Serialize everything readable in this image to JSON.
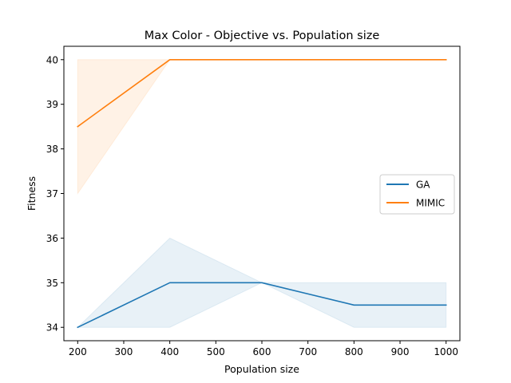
{
  "chart_data": {
    "type": "line",
    "title": "Max Color - Objective vs. Population size",
    "xlabel": "Population size",
    "ylabel": "Fitness",
    "xlim": [
      170,
      1030
    ],
    "ylim": [
      33.7,
      40.3
    ],
    "xticks": [
      200,
      300,
      400,
      500,
      600,
      700,
      800,
      900,
      1000
    ],
    "yticks": [
      34,
      35,
      36,
      37,
      38,
      39,
      40
    ],
    "grid": false,
    "legend_position": "center-right",
    "series": [
      {
        "name": "GA",
        "color": "#1f77b4",
        "x": [
          200,
          400,
          600,
          800,
          1000
        ],
        "y": [
          34.0,
          35.0,
          35.0,
          34.5,
          34.5
        ],
        "band_low": [
          34.0,
          34.0,
          35.0,
          34.0,
          34.0
        ],
        "band_high": [
          34.0,
          36.0,
          35.0,
          35.0,
          35.0
        ]
      },
      {
        "name": "MIMIC",
        "color": "#ff7f0e",
        "x": [
          200,
          400,
          600,
          800,
          1000
        ],
        "y": [
          38.5,
          40.0,
          40.0,
          40.0,
          40.0
        ],
        "band_low": [
          37.0,
          40.0,
          40.0,
          40.0,
          40.0
        ],
        "band_high": [
          40.0,
          40.0,
          40.0,
          40.0,
          40.0
        ]
      }
    ]
  }
}
